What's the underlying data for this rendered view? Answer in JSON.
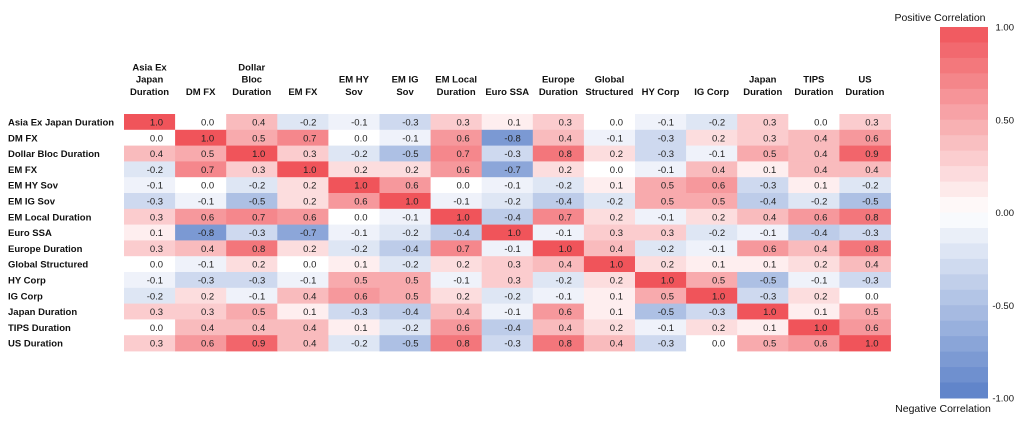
{
  "chart_data": {
    "type": "heatmap",
    "rows": [
      "Asia Ex Japan Duration",
      "DM FX",
      "Dollar Bloc Duration",
      "EM FX",
      "EM HY Sov",
      "EM IG Sov",
      "EM Local Duration",
      "Euro SSA",
      "Europe Duration",
      "Global Structured",
      "HY Corp",
      "IG Corp",
      "Japan Duration",
      "TIPS Duration",
      "US Duration"
    ],
    "columns": [
      [
        "Asia Ex",
        "Japan",
        "Duration"
      ],
      [
        "DM FX"
      ],
      [
        "Dollar",
        "Bloc",
        "Duration"
      ],
      [
        "EM FX"
      ],
      [
        "EM HY",
        "Sov"
      ],
      [
        "EM IG",
        "Sov"
      ],
      [
        "EM Local",
        "Duration"
      ],
      [
        "Euro SSA"
      ],
      [
        "Europe",
        "Duration"
      ],
      [
        "Global",
        "Structured"
      ],
      [
        "HY Corp"
      ],
      [
        "IG Corp"
      ],
      [
        "Japan",
        "Duration"
      ],
      [
        "TIPS",
        "Duration"
      ],
      [
        "US",
        "Duration"
      ]
    ],
    "values": [
      [
        1.0,
        -0.0,
        0.4,
        -0.2,
        -0.1,
        -0.3,
        0.3,
        0.1,
        0.3,
        0.0,
        -0.1,
        -0.2,
        0.3,
        0.0,
        0.3
      ],
      [
        -0.0,
        1.0,
        0.5,
        0.7,
        -0.0,
        -0.1,
        0.6,
        -0.8,
        0.4,
        -0.1,
        -0.3,
        0.2,
        0.3,
        0.4,
        0.6
      ],
      [
        0.4,
        0.5,
        1.0,
        0.3,
        -0.2,
        -0.5,
        0.7,
        -0.3,
        0.8,
        0.2,
        -0.3,
        -0.1,
        0.5,
        0.4,
        0.9
      ],
      [
        -0.2,
        0.7,
        0.3,
        1.0,
        0.2,
        0.2,
        0.6,
        -0.7,
        0.2,
        -0.0,
        -0.1,
        0.4,
        0.1,
        0.4,
        0.4
      ],
      [
        -0.1,
        -0.0,
        -0.2,
        0.2,
        1.0,
        0.6,
        0.0,
        -0.1,
        -0.2,
        0.1,
        0.5,
        0.6,
        -0.3,
        0.1,
        -0.2
      ],
      [
        -0.3,
        -0.1,
        -0.5,
        0.2,
        0.6,
        1.0,
        -0.1,
        -0.2,
        -0.4,
        -0.2,
        0.5,
        0.5,
        -0.4,
        -0.2,
        -0.5
      ],
      [
        0.3,
        0.6,
        0.7,
        0.6,
        0.0,
        -0.1,
        1.0,
        -0.4,
        0.7,
        0.2,
        -0.1,
        0.2,
        0.4,
        0.6,
        0.8
      ],
      [
        0.1,
        -0.8,
        -0.3,
        -0.7,
        -0.1,
        -0.2,
        -0.4,
        1.0,
        -0.1,
        0.3,
        0.3,
        -0.2,
        -0.1,
        -0.4,
        -0.3
      ],
      [
        0.3,
        0.4,
        0.8,
        0.2,
        -0.2,
        -0.4,
        0.7,
        -0.1,
        1.0,
        0.4,
        -0.2,
        -0.1,
        0.6,
        0.4,
        0.8
      ],
      [
        0.0,
        -0.1,
        0.2,
        -0.0,
        0.1,
        -0.2,
        0.2,
        0.3,
        0.4,
        1.0,
        0.2,
        0.1,
        0.1,
        0.2,
        0.4
      ],
      [
        -0.1,
        -0.3,
        -0.3,
        -0.1,
        0.5,
        0.5,
        -0.1,
        0.3,
        -0.2,
        0.2,
        1.0,
        0.5,
        -0.5,
        -0.1,
        -0.3
      ],
      [
        -0.2,
        0.2,
        -0.1,
        0.4,
        0.6,
        0.5,
        0.2,
        -0.2,
        -0.1,
        0.1,
        0.5,
        1.0,
        -0.3,
        0.2,
        0.0
      ],
      [
        0.3,
        0.3,
        0.5,
        0.1,
        -0.3,
        -0.4,
        0.4,
        -0.1,
        0.6,
        0.1,
        -0.5,
        -0.3,
        1.0,
        0.1,
        0.5
      ],
      [
        0.0,
        0.4,
        0.4,
        0.4,
        0.1,
        -0.2,
        0.6,
        -0.4,
        0.4,
        0.2,
        -0.1,
        0.2,
        0.1,
        1.0,
        0.6
      ],
      [
        0.3,
        0.6,
        0.9,
        0.4,
        -0.2,
        -0.5,
        0.8,
        -0.3,
        0.8,
        0.4,
        -0.3,
        0.0,
        0.5,
        0.6,
        1.0
      ]
    ],
    "value_range": [
      -1.0,
      1.0
    ],
    "legend": {
      "top_label": "Positive Correlation",
      "bottom_label": "Negative Correlation",
      "ticks": [
        "1.00",
        "0.50",
        "0.00",
        "-0.50",
        "-1.00"
      ],
      "tick_values": [
        1.0,
        0.5,
        0.0,
        -0.5,
        -1.0
      ],
      "placement": "right"
    },
    "colors": {
      "positive": "#f0545a",
      "neutral": "#ffffff",
      "negative": "#5a80c8"
    }
  }
}
